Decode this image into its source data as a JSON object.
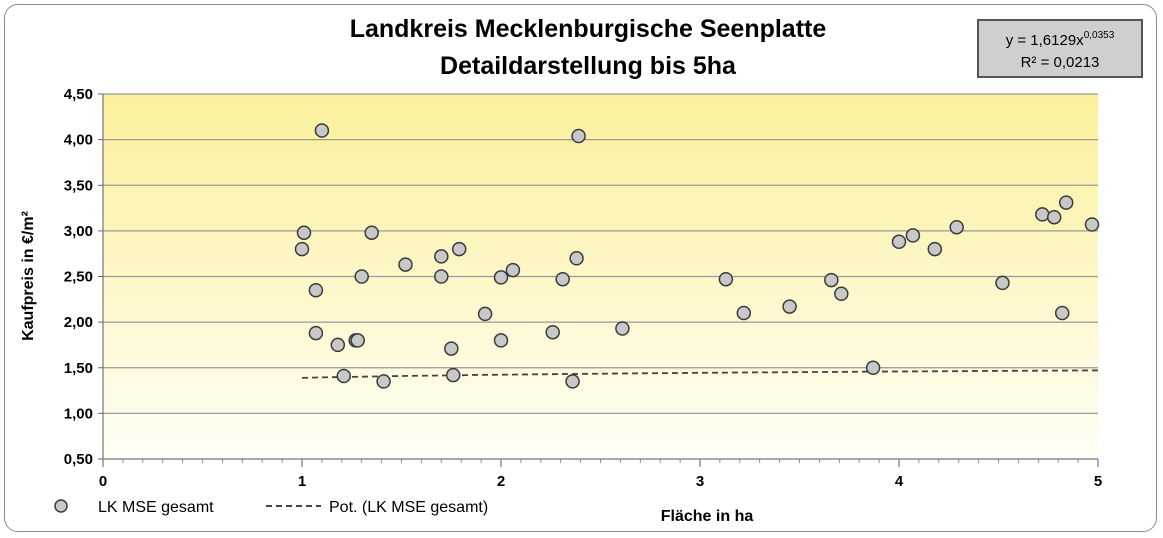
{
  "chart_data": {
    "type": "scatter",
    "title": "Landkreis Mecklenburgische Seenplatte",
    "subtitle": "Detaildarstellung bis 5ha",
    "xlabel": "Fläche in ha",
    "ylabel": "Kaufpreis in €/m²",
    "xlim": [
      0,
      5
    ],
    "ylim": [
      0.5,
      4.5
    ],
    "x_ticks": [
      "0",
      "1",
      "2",
      "3",
      "4",
      "5"
    ],
    "y_ticks": [
      "0,50",
      "1,00",
      "1,50",
      "2,00",
      "2,50",
      "3,00",
      "3,50",
      "4,00",
      "4,50"
    ],
    "grid": true,
    "legend_position": "bottom-left",
    "colors": {
      "marker_fill": "#c8c8c8",
      "marker_stroke": "#3a3a3a",
      "trend": "#444444",
      "gridline": "#999999",
      "bg_top": "#fbf09a",
      "bg_bottom": "#fffef6"
    },
    "series": [
      {
        "name": "LK MSE gesamt",
        "points": [
          [
            1.0,
            2.8
          ],
          [
            1.01,
            2.98
          ],
          [
            1.07,
            2.35
          ],
          [
            1.07,
            1.88
          ],
          [
            1.1,
            4.1
          ],
          [
            1.18,
            1.75
          ],
          [
            1.21,
            1.41
          ],
          [
            1.27,
            1.8
          ],
          [
            1.28,
            1.8
          ],
          [
            1.3,
            2.5
          ],
          [
            1.35,
            2.98
          ],
          [
            1.41,
            1.35
          ],
          [
            1.52,
            2.63
          ],
          [
            1.7,
            2.72
          ],
          [
            1.7,
            2.5
          ],
          [
            1.75,
            1.71
          ],
          [
            1.76,
            1.42
          ],
          [
            1.79,
            2.8
          ],
          [
            1.92,
            2.09
          ],
          [
            2.0,
            2.49
          ],
          [
            2.0,
            1.8
          ],
          [
            2.06,
            2.57
          ],
          [
            2.26,
            1.89
          ],
          [
            2.31,
            2.47
          ],
          [
            2.36,
            1.35
          ],
          [
            2.38,
            2.7
          ],
          [
            2.39,
            4.04
          ],
          [
            2.61,
            1.93
          ],
          [
            3.13,
            2.47
          ],
          [
            3.22,
            2.1
          ],
          [
            3.45,
            2.17
          ],
          [
            3.66,
            2.46
          ],
          [
            3.71,
            2.31
          ],
          [
            3.87,
            1.5
          ],
          [
            4.0,
            2.88
          ],
          [
            4.07,
            2.95
          ],
          [
            4.18,
            2.8
          ],
          [
            4.29,
            3.04
          ],
          [
            4.52,
            2.43
          ],
          [
            4.72,
            3.18
          ],
          [
            4.78,
            3.15
          ],
          [
            4.82,
            2.1
          ],
          [
            4.84,
            3.31
          ],
          [
            4.97,
            3.07
          ]
        ]
      }
    ],
    "trendline": {
      "name": "Pot. (LK MSE gesamt)",
      "type": "power",
      "a": 1.6129,
      "b": 0.0353,
      "x_range": [
        1.0,
        5.0
      ],
      "scale_factor": 1.3893
    },
    "equation_box": {
      "line1_prefix": "y = 1,6129x",
      "line1_exponent": "0,0353",
      "line2": "R² = 0,0213"
    }
  }
}
